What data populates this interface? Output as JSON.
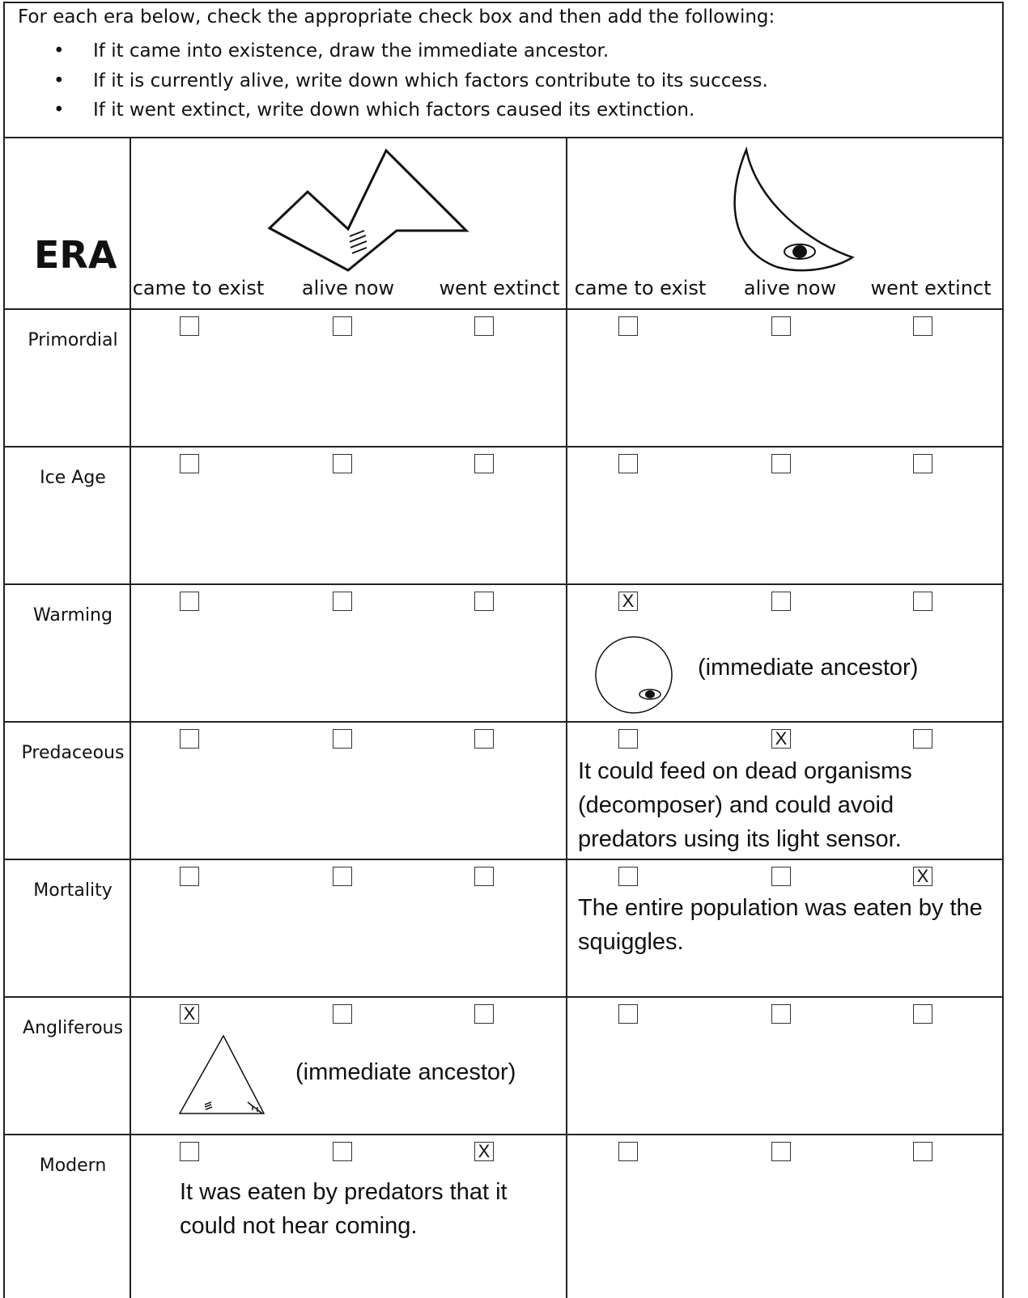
{
  "instructions": {
    "intro": "For each era below, check the appropriate check box and then add the following:",
    "bullets": [
      "If it came into existence, draw the immediate ancestor.",
      "If it is currently alive, write down which factors contribute to its success.",
      "If it went extinct, write down which factors caused its extinction."
    ]
  },
  "header": {
    "era_label": "ERA",
    "columns": [
      "came to exist",
      "alive now",
      "went extinct"
    ]
  },
  "check_mark": "X",
  "rows": [
    {
      "era": "Primordial",
      "cells": [
        {},
        {}
      ]
    },
    {
      "era": "Ice Age",
      "cells": [
        {},
        {}
      ]
    },
    {
      "era": "Warming",
      "cells": [
        {},
        {
          "check": 0,
          "note": "(immediate ancestor)"
        }
      ]
    },
    {
      "era": "Predaceous",
      "cells": [
        {},
        {
          "check": 1,
          "note": "It could feed on dead organisms (decomposer) and could avoid predators using its light sensor."
        }
      ]
    },
    {
      "era": "Mortality",
      "cells": [
        {},
        {
          "check": 2,
          "note": "The entire population was eaten by the squiggles."
        }
      ]
    },
    {
      "era": "Angliferous",
      "cells": [
        {
          "check": 0,
          "note": "(immediate ancestor)"
        },
        {}
      ]
    },
    {
      "era": "Modern",
      "cells": [
        {
          "check": 2,
          "note": "It was eaten by predators that it could not hear coming."
        },
        {}
      ]
    }
  ]
}
